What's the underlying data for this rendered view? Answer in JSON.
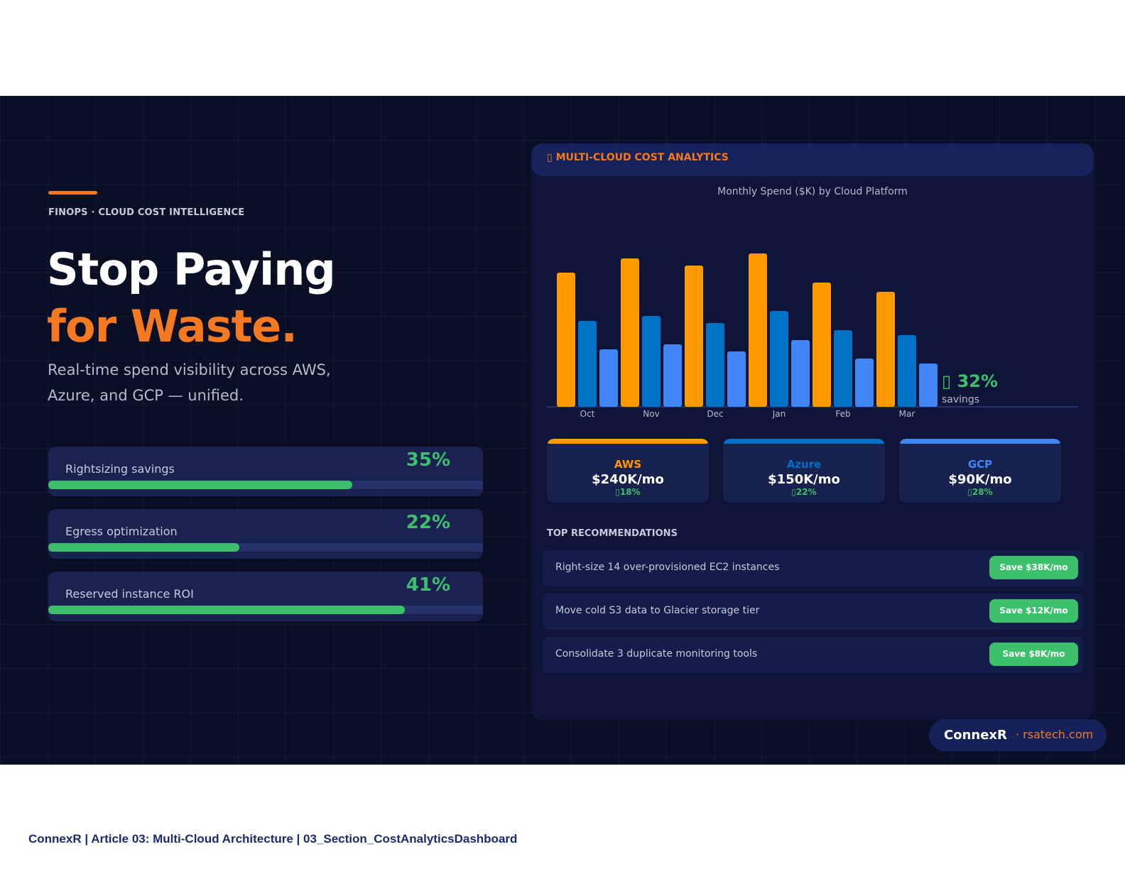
{
  "hero": {
    "eyebrow": "FINOPS · CLOUD COST INTELLIGENCE",
    "title_line1": "Stop Paying",
    "title_line2": "for Waste.",
    "subtitle": "Real-time spend visibility across AWS, Azure, and GCP — unified."
  },
  "metrics": [
    {
      "label": "Rightsizing savings",
      "value": "35%",
      "fill": 0.7
    },
    {
      "label": "Egress optimization",
      "value": "22%",
      "fill": 0.44
    },
    {
      "label": "Reserved instance ROI",
      "value": "41%",
      "fill": 0.82
    }
  ],
  "panel": {
    "title": "▯ MULTI-CLOUD COST ANALYTICS"
  },
  "chart_data": {
    "type": "bar",
    "title": "Monthly Spend ($K) by Cloud Platform",
    "categories": [
      "Oct",
      "Nov",
      "Dec",
      "Jan",
      "Feb",
      "Mar"
    ],
    "series": [
      {
        "values": [
          189,
          209,
          199,
          216,
          175,
          162
        ],
        "color": "#ff9900"
      },
      {
        "values": [
          121,
          128,
          118,
          135,
          108,
          101
        ],
        "color": "#0072c6"
      },
      {
        "values": [
          81,
          88,
          78,
          94,
          68,
          61
        ],
        "color": "#4285f4"
      }
    ],
    "annotation": {
      "value": "▯ 32%",
      "label": "savings"
    },
    "grid": false
  },
  "platforms": [
    {
      "name": "AWS",
      "amount": "$240K/mo",
      "change": "▯18%",
      "color": "#ff9900"
    },
    {
      "name": "Azure",
      "amount": "$150K/mo",
      "change": "▯22%",
      "color": "#0072c6"
    },
    {
      "name": "GCP",
      "amount": "$90K/mo",
      "change": "▯28%",
      "color": "#4285f4"
    }
  ],
  "recommendations": {
    "title": "TOP RECOMMENDATIONS",
    "items": [
      {
        "text": "Right-size 14 over-provisioned EC2 instances",
        "save": "Save $38K/mo"
      },
      {
        "text": "Move cold S3 data to Glacier storage tier",
        "save": "Save $12K/mo"
      },
      {
        "text": "Consolidate 3 duplicate monitoring tools",
        "save": "Save $8K/mo"
      }
    ]
  },
  "brand": {
    "name": "ConnexR",
    "url": "· rsatech.com"
  },
  "footer": "ConnexR | Article 03: Multi-Cloud Architecture | 03_Section_CostAnalyticsDashboard"
}
